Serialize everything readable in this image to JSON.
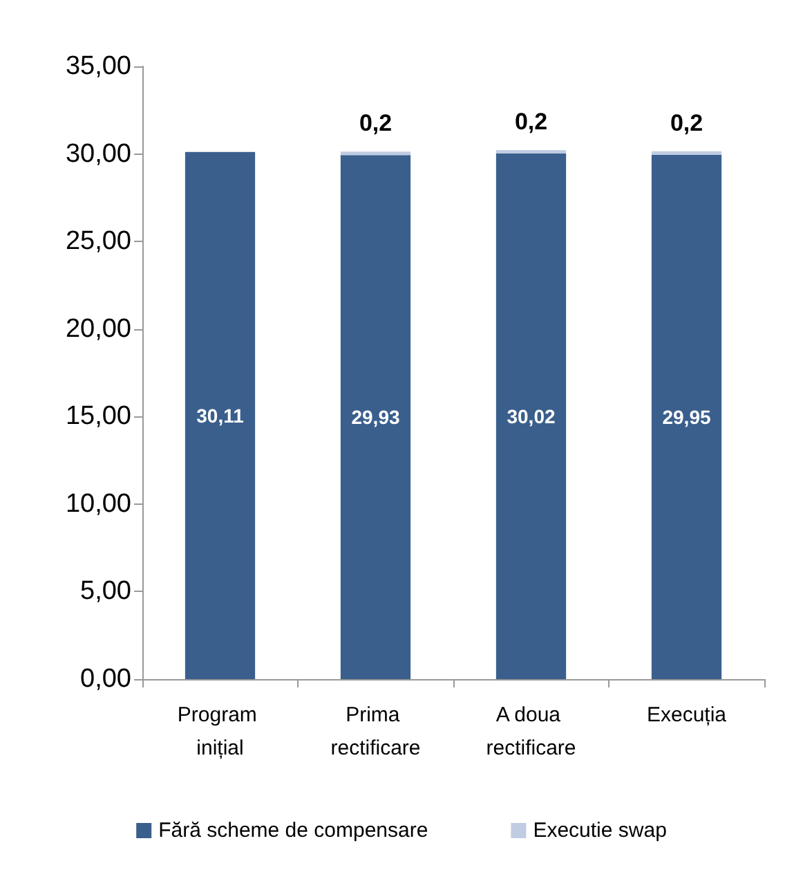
{
  "chart_data": {
    "type": "bar",
    "stacked": true,
    "categories": [
      "Program inițial",
      "Prima rectificare",
      "A doua rectificare",
      "Execuția"
    ],
    "series": [
      {
        "name": "Fără scheme de compensare",
        "color": "#3a5f8c",
        "values": [
          30.11,
          29.93,
          30.02,
          29.95
        ],
        "value_labels": [
          "30,11",
          "29,93",
          "30,02",
          "29,95"
        ]
      },
      {
        "name": "Executie swap",
        "color": "#c0cce2",
        "values": [
          null,
          0.2,
          0.2,
          0.2
        ],
        "value_labels": [
          null,
          "0,2",
          "0,2",
          "0,2"
        ]
      }
    ],
    "ylim": [
      0,
      35
    ],
    "yticks": [
      {
        "value": 0,
        "label": "0,00"
      },
      {
        "value": 5,
        "label": "5,00"
      },
      {
        "value": 10,
        "label": "10,00"
      },
      {
        "value": 15,
        "label": "15,00"
      },
      {
        "value": 20,
        "label": "20,00"
      },
      {
        "value": 25,
        "label": "25,00"
      },
      {
        "value": 30,
        "label": "30,00"
      },
      {
        "value": 35,
        "label": "35,00"
      }
    ],
    "grid": false,
    "legend": "bottom"
  }
}
